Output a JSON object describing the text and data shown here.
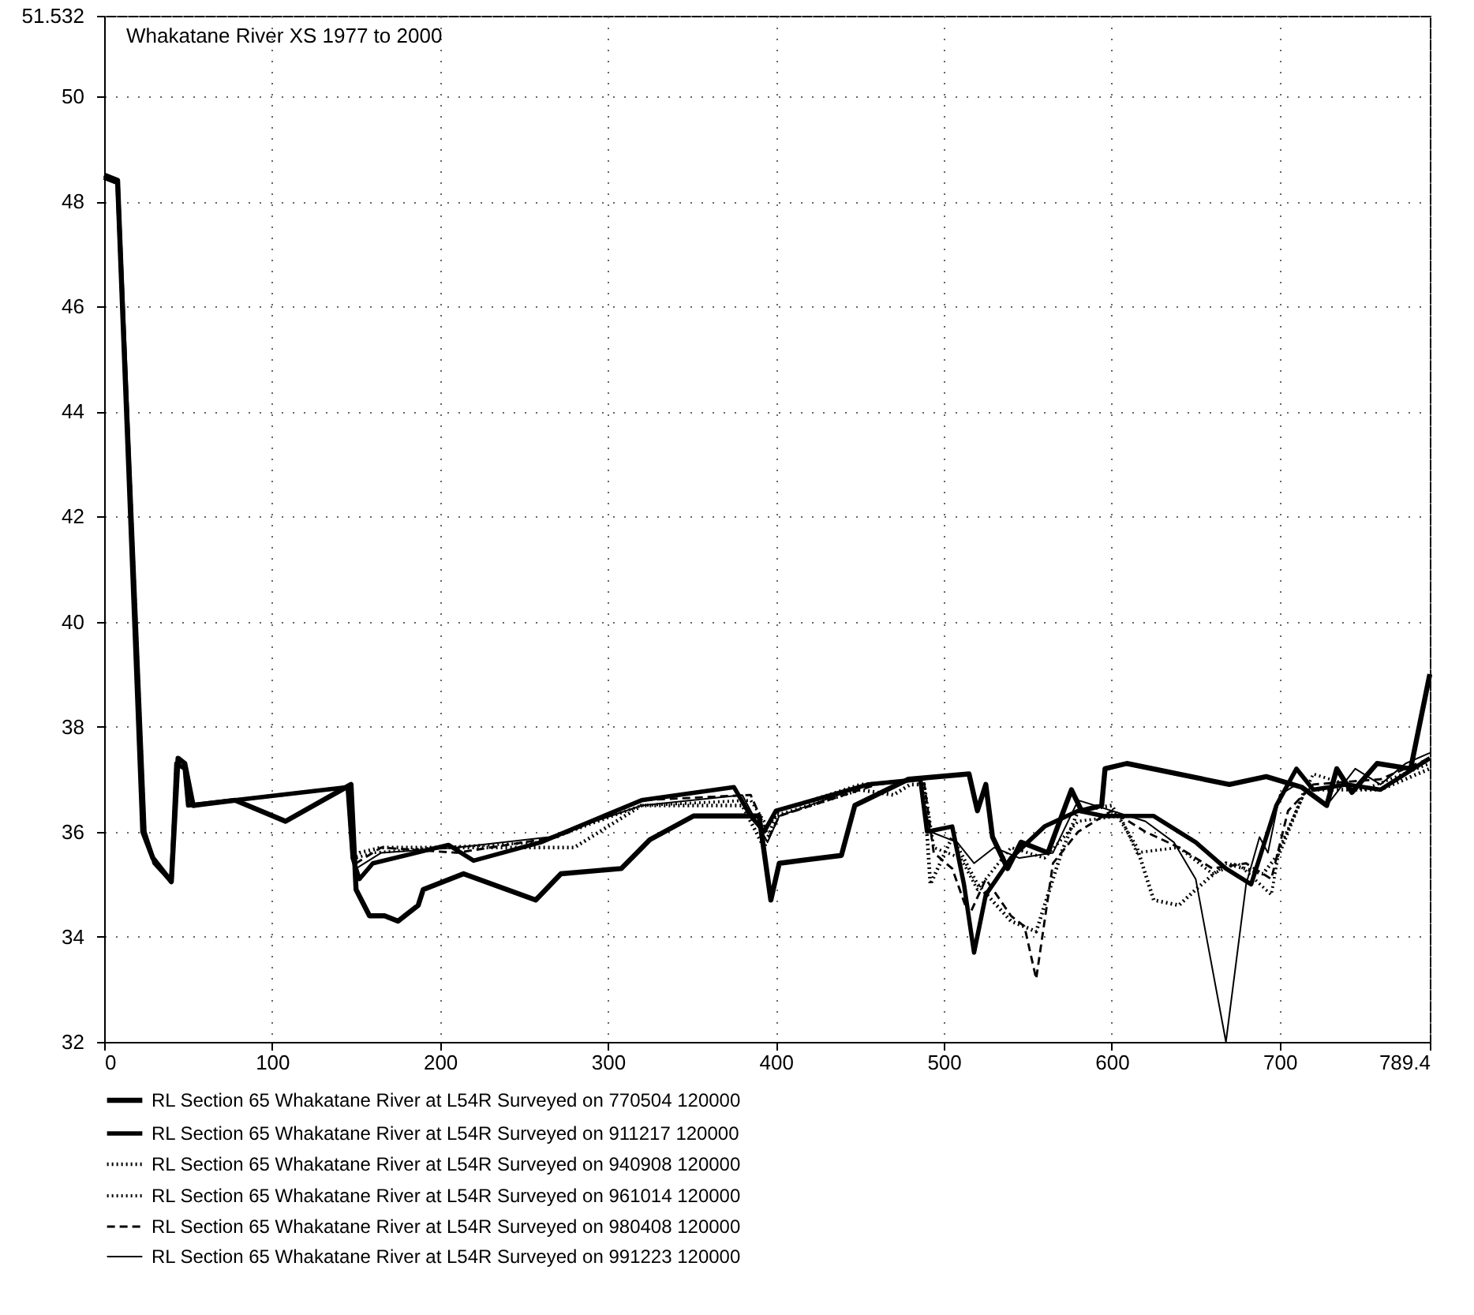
{
  "chart_data": {
    "type": "line",
    "title": "Whakatane River XS 1977 to 2000",
    "xlim": [
      0,
      789.4
    ],
    "xticks": [
      0,
      100,
      200,
      300,
      400,
      500,
      600,
      700,
      789.4
    ],
    "ylim": [
      32,
      51.532
    ],
    "yticks": [
      32,
      34,
      36,
      38,
      40,
      42,
      44,
      46,
      48,
      50,
      51.532
    ],
    "grid": true,
    "legend": "bottom",
    "marker": "none",
    "series": [
      {
        "name": "RL Section 65 Whakatane River at L54R  Surveyed on 770504 120000",
        "color": "#000000",
        "line_style": "solid",
        "x": [
          0,
          8,
          23,
          29,
          40,
          44,
          48,
          53,
          78,
          108,
          147,
          150,
          158,
          167,
          175,
          187,
          190,
          214,
          257,
          272,
          308,
          325,
          351,
          390,
          397,
          402,
          439,
          447,
          479,
          515,
          520,
          525,
          529,
          538,
          546,
          562,
          576,
          582,
          594,
          596,
          609,
          670,
          692,
          713,
          728,
          734,
          743,
          758,
          778,
          789.4
        ],
        "values": [
          48.5,
          48.4,
          36.0,
          35.5,
          35.05,
          37.4,
          37.3,
          36.5,
          36.6,
          36.2,
          36.9,
          34.9,
          34.4,
          34.4,
          34.3,
          34.6,
          34.9,
          35.2,
          34.7,
          35.2,
          35.3,
          35.85,
          36.3,
          36.3,
          34.7,
          35.4,
          35.55,
          36.5,
          37.0,
          37.1,
          36.4,
          36.9,
          35.9,
          35.3,
          35.8,
          35.6,
          36.8,
          36.4,
          36.5,
          37.2,
          37.3,
          36.9,
          37.05,
          36.85,
          36.5,
          37.2,
          36.75,
          37.3,
          37.2,
          39.0
        ]
      },
      {
        "name": "RL Section 65 Whakatane River at L54R  Surveyed on 911217 120000",
        "color": "#000000",
        "line_style": "solid",
        "x": [
          0,
          8,
          24,
          30,
          40,
          43,
          48,
          50,
          78,
          145,
          148,
          152,
          160,
          205,
          220,
          260,
          320,
          375,
          385,
          393,
          400,
          455,
          486,
          490,
          505,
          512,
          518,
          525,
          540,
          560,
          580,
          595,
          625,
          650,
          668,
          683,
          698,
          710,
          720,
          740,
          760,
          789.4
        ],
        "values": [
          48.45,
          48.35,
          36.0,
          35.4,
          35.05,
          37.3,
          37.2,
          36.5,
          36.6,
          36.85,
          35.5,
          35.1,
          35.4,
          35.75,
          35.45,
          35.8,
          36.6,
          36.85,
          36.3,
          36.0,
          36.4,
          36.9,
          37.0,
          36.0,
          36.1,
          35.0,
          33.7,
          34.8,
          35.5,
          36.1,
          36.4,
          36.3,
          36.3,
          35.8,
          35.3,
          35.0,
          36.5,
          37.2,
          36.8,
          36.9,
          36.8,
          37.4
        ]
      },
      {
        "name": "RL Section 65 Whakatane River at L54R  Surveyed on 940908 120000",
        "color": "#000000",
        "line_style": "dotted",
        "x": [
          0,
          8,
          24,
          30,
          40,
          43,
          48,
          50,
          78,
          145,
          148,
          152,
          165,
          200,
          280,
          300,
          320,
          380,
          393,
          400,
          450,
          470,
          480,
          488,
          492,
          505,
          520,
          540,
          555,
          570,
          580,
          600,
          615,
          625,
          640,
          650,
          668,
          690,
          700,
          715,
          760,
          789.4
        ],
        "values": [
          48.45,
          48.35,
          36.0,
          35.4,
          35.05,
          37.3,
          37.2,
          36.5,
          36.6,
          36.85,
          35.5,
          35.6,
          35.7,
          35.7,
          35.7,
          36.1,
          36.5,
          36.5,
          35.7,
          36.3,
          36.8,
          36.7,
          36.9,
          36.9,
          35.0,
          35.9,
          35.0,
          34.3,
          34.1,
          35.6,
          36.4,
          36.5,
          35.7,
          34.7,
          34.6,
          34.9,
          35.4,
          35.2,
          35.6,
          36.8,
          36.8,
          37.2
        ]
      },
      {
        "name": "RL Section 65 Whakatane River at L54R  Surveyed on 961014 120000",
        "color": "#000000",
        "line_style": "dotted",
        "x": [
          0,
          8,
          24,
          30,
          40,
          43,
          48,
          50,
          78,
          145,
          148,
          150,
          160,
          200,
          260,
          320,
          385,
          395,
          402,
          450,
          488,
          494,
          510,
          520,
          540,
          560,
          580,
          605,
          615,
          640,
          660,
          675,
          695,
          700,
          720,
          750,
          789.4
        ],
        "values": [
          48.45,
          48.35,
          36.0,
          35.4,
          35.05,
          37.3,
          37.2,
          36.5,
          36.6,
          36.85,
          35.5,
          35.5,
          35.6,
          35.7,
          35.8,
          36.5,
          36.6,
          36.1,
          36.4,
          36.9,
          37.0,
          35.7,
          35.5,
          34.9,
          35.7,
          35.5,
          36.2,
          36.3,
          35.6,
          35.7,
          35.2,
          35.4,
          34.8,
          35.7,
          37.1,
          36.8,
          37.3
        ]
      },
      {
        "name": "RL Section 65 Whakatane River at L54R  Surveyed on 980408 120000",
        "color": "#000000",
        "line_style": "dashed",
        "x": [
          0,
          8,
          24,
          30,
          40,
          43,
          48,
          50,
          78,
          145,
          148,
          150,
          165,
          210,
          270,
          320,
          385,
          396,
          402,
          460,
          488,
          494,
          505,
          515,
          525,
          540,
          548,
          555,
          565,
          580,
          600,
          620,
          640,
          660,
          680,
          695,
          705,
          720,
          760,
          789.4
        ],
        "values": [
          48.45,
          48.35,
          36.0,
          35.4,
          35.05,
          37.3,
          37.2,
          36.5,
          36.6,
          36.85,
          35.5,
          35.4,
          35.7,
          35.6,
          35.9,
          36.6,
          36.7,
          35.9,
          36.3,
          36.9,
          37.0,
          35.6,
          35.3,
          34.4,
          35.1,
          34.4,
          34.2,
          33.2,
          35.4,
          36.0,
          36.4,
          36.0,
          35.7,
          35.3,
          35.4,
          35.1,
          36.4,
          36.9,
          37.0,
          37.4
        ]
      },
      {
        "name": "RL Section 65 Whakatane River at L54R  Surveyed on 991223 120000",
        "color": "#000000",
        "line_style": "solid",
        "x": [
          0,
          8,
          24,
          30,
          40,
          43,
          48,
          50,
          78,
          145,
          148,
          150,
          165,
          210,
          265,
          320,
          380,
          395,
          402,
          455,
          485,
          492,
          508,
          518,
          530,
          545,
          565,
          580,
          600,
          620,
          637,
          650,
          668,
          680,
          688,
          693,
          700,
          710,
          728,
          745,
          760,
          775,
          789.4
        ],
        "values": [
          48.45,
          48.35,
          36.0,
          35.4,
          35.05,
          37.3,
          37.2,
          36.5,
          36.6,
          36.85,
          35.5,
          35.3,
          35.6,
          35.7,
          35.9,
          36.5,
          36.7,
          35.8,
          36.3,
          36.9,
          37.0,
          36.0,
          35.8,
          35.4,
          35.7,
          35.5,
          35.6,
          36.6,
          36.4,
          36.2,
          35.8,
          35.1,
          32.0,
          35.0,
          35.9,
          35.6,
          36.7,
          36.9,
          36.5,
          37.2,
          36.9,
          37.3,
          37.5
        ]
      }
    ]
  }
}
